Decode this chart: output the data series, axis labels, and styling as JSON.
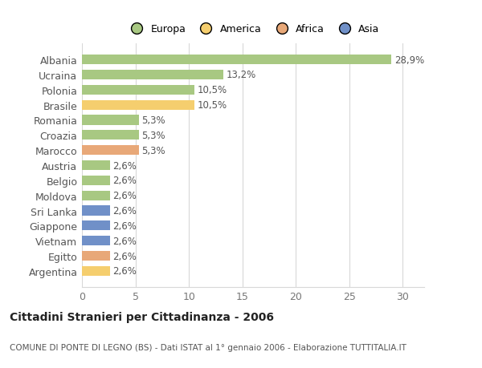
{
  "title": "Cittadini Stranieri per Cittadinanza - 2006",
  "subtitle": "COMUNE DI PONTE DI LEGNO (BS) - Dati ISTAT al 1° gennaio 2006 - Elaborazione TUTTITALIA.IT",
  "legend_labels": [
    "Europa",
    "America",
    "Africa",
    "Asia"
  ],
  "legend_colors": [
    "#a8c882",
    "#f5ce6e",
    "#e8a878",
    "#7090c8"
  ],
  "countries": [
    "Albania",
    "Ucraina",
    "Polonia",
    "Brasile",
    "Romania",
    "Croazia",
    "Marocco",
    "Austria",
    "Belgio",
    "Moldova",
    "Sri Lanka",
    "Giappone",
    "Vietnam",
    "Egitto",
    "Argentina"
  ],
  "values": [
    28.9,
    13.2,
    10.5,
    10.5,
    5.3,
    5.3,
    5.3,
    2.6,
    2.6,
    2.6,
    2.6,
    2.6,
    2.6,
    2.6,
    2.6
  ],
  "bar_colors": [
    "#a8c882",
    "#a8c882",
    "#a8c882",
    "#f5ce6e",
    "#a8c882",
    "#a8c882",
    "#e8a878",
    "#a8c882",
    "#a8c882",
    "#a8c882",
    "#7090c8",
    "#7090c8",
    "#7090c8",
    "#e8a878",
    "#f5ce6e"
  ],
  "labels": [
    "28,9%",
    "13,2%",
    "10,5%",
    "10,5%",
    "5,3%",
    "5,3%",
    "5,3%",
    "2,6%",
    "2,6%",
    "2,6%",
    "2,6%",
    "2,6%",
    "2,6%",
    "2,6%",
    "2,6%"
  ],
  "xlim": [
    0,
    32
  ],
  "xticks": [
    0,
    5,
    10,
    15,
    20,
    25,
    30
  ],
  "background_color": "#ffffff",
  "grid_color": "#d8d8d8",
  "bar_height": 0.65,
  "figsize": [
    6.0,
    4.6
  ],
  "dpi": 100
}
